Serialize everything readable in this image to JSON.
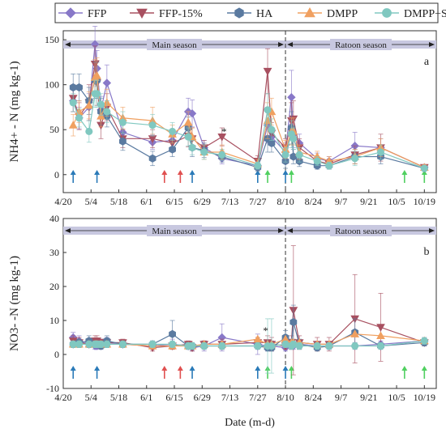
{
  "colors": {
    "FFP": "#8878c8",
    "FFP-15%": "#a85060",
    "HA": "#5a7aa0",
    "DMPP": "#f0a060",
    "DMPP+SI": "#80c8c0",
    "band": "#c8c8e0",
    "arrow_blue": "#2a7ab8",
    "arrow_red": "#e05050",
    "arrow_green": "#50d060"
  },
  "legend": {
    "placement": "top",
    "items": [
      {
        "name": "FFP",
        "marker": "diamond"
      },
      {
        "name": "FFP-15%",
        "marker": "triangle-down"
      },
      {
        "name": "HA",
        "marker": "hexagon"
      },
      {
        "name": "DMPP",
        "marker": "triangle-up"
      },
      {
        "name": "DMPP+SI",
        "marker": "circle"
      }
    ]
  },
  "x_axis": {
    "label": "Date (m-d)",
    "ticks": [
      "4/20",
      "5/4",
      "5/18",
      "6/1",
      "6/15",
      "6/29",
      "7/13",
      "7/27",
      "8/10",
      "8/24",
      "9/7",
      "9/21",
      "10/5",
      "10/19"
    ],
    "tick_days": [
      0,
      14,
      28,
      42,
      56,
      70,
      84,
      98,
      112,
      126,
      140,
      154,
      168,
      182
    ],
    "range_days": [
      0,
      188
    ],
    "season_divider_day": 112
  },
  "chart_data": [
    {
      "type": "line",
      "panel_letter": "a",
      "ylabel": "NH4+ - N (mg kg-1)",
      "ylim": [
        -20,
        160
      ],
      "yticks": [
        0,
        50,
        100,
        150
      ],
      "seasons": [
        "Main season",
        "Ratoon season"
      ],
      "star_label": "*",
      "star_day": 81,
      "star_y": 44,
      "x": [
        "4/25",
        "4/28",
        "5/3",
        "5/6",
        "5/7",
        "5/9",
        "5/12",
        "5/20",
        "6/4",
        "6/14",
        "6/22",
        "6/24",
        "6/30",
        "7/9",
        "7/27",
        "8/1",
        "8/3",
        "8/10",
        "8/13",
        "8/14",
        "8/17",
        "8/26",
        "9/1",
        "9/14",
        "9/27",
        "10/19"
      ],
      "series": [
        {
          "name": "FFP",
          "values": [
            82,
            63,
            75,
            145,
            118,
            72,
            102,
            47,
            36,
            38,
            70,
            68,
            30,
            18,
            10,
            55,
            42,
            25,
            86,
            45,
            35,
            18,
            15,
            32,
            30,
            8
          ],
          "errors": [
            12,
            12,
            15,
            20,
            20,
            15,
            20,
            12,
            8,
            10,
            15,
            15,
            8,
            6,
            5,
            20,
            10,
            10,
            30,
            15,
            10,
            6,
            5,
            15,
            10,
            3
          ]
        },
        {
          "name": "FFP-15%",
          "values": [
            85,
            65,
            80,
            123,
            102,
            55,
            75,
            40,
            40,
            35,
            43,
            40,
            30,
            42,
            15,
            115,
            46,
            30,
            60,
            62,
            30,
            15,
            12,
            22,
            30,
            8
          ],
          "errors": [
            15,
            15,
            20,
            20,
            25,
            15,
            15,
            10,
            10,
            10,
            12,
            12,
            8,
            10,
            6,
            25,
            12,
            10,
            20,
            20,
            10,
            5,
            5,
            10,
            15,
            3
          ]
        },
        {
          "name": "HA",
          "values": [
            97,
            97,
            82,
            105,
            105,
            70,
            65,
            37,
            18,
            28,
            52,
            30,
            27,
            20,
            8,
            40,
            35,
            15,
            52,
            20,
            15,
            10,
            10,
            20,
            20,
            7
          ],
          "errors": [
            15,
            15,
            15,
            20,
            20,
            15,
            12,
            10,
            8,
            8,
            12,
            10,
            8,
            6,
            4,
            15,
            10,
            8,
            18,
            8,
            6,
            4,
            4,
            8,
            8,
            3
          ]
        },
        {
          "name": "DMPP",
          "values": [
            55,
            70,
            77,
            108,
            110,
            65,
            80,
            63,
            60,
            45,
            58,
            42,
            25,
            25,
            12,
            60,
            70,
            28,
            48,
            48,
            25,
            20,
            15,
            20,
            30,
            8
          ],
          "errors": [
            12,
            12,
            15,
            20,
            20,
            12,
            15,
            12,
            15,
            10,
            12,
            10,
            8,
            8,
            5,
            20,
            15,
            10,
            15,
            15,
            8,
            6,
            5,
            8,
            10,
            3
          ]
        },
        {
          "name": "DMPP+SI",
          "values": [
            80,
            63,
            48,
            90,
            90,
            78,
            70,
            58,
            55,
            48,
            42,
            30,
            25,
            22,
            10,
            72,
            50,
            22,
            45,
            40,
            22,
            15,
            10,
            18,
            25,
            7
          ],
          "errors": [
            10,
            10,
            12,
            15,
            15,
            12,
            12,
            12,
            12,
            10,
            10,
            8,
            8,
            6,
            4,
            18,
            12,
            8,
            15,
            12,
            8,
            5,
            4,
            8,
            8,
            3
          ]
        }
      ],
      "arrows": [
        {
          "date": "4/25",
          "color": "blue"
        },
        {
          "date": "5/7",
          "color": "blue"
        },
        {
          "date": "6/10",
          "color": "red"
        },
        {
          "date": "6/18",
          "color": "red"
        },
        {
          "date": "6/24",
          "color": "blue"
        },
        {
          "date": "7/27",
          "color": "blue"
        },
        {
          "date": "8/1",
          "color": "green"
        },
        {
          "date": "8/10",
          "color": "blue"
        },
        {
          "date": "8/13",
          "color": "green"
        },
        {
          "date": "10/9",
          "color": "green"
        },
        {
          "date": "10/19",
          "color": "green"
        }
      ]
    },
    {
      "type": "line",
      "panel_letter": "b",
      "ylabel": "NO3- -N (mg kg-1)",
      "ylim": [
        -10,
        40
      ],
      "yticks": [
        -10,
        0,
        10,
        20,
        30,
        40
      ],
      "seasons": [
        "Main season",
        "Ratoon season"
      ],
      "star_label": "*",
      "star_day": 102,
      "star_y": 6,
      "x": [
        "4/25",
        "4/28",
        "5/3",
        "5/6",
        "5/7",
        "5/9",
        "5/12",
        "5/20",
        "6/4",
        "6/14",
        "6/22",
        "6/24",
        "6/30",
        "7/9",
        "7/27",
        "8/1",
        "8/3",
        "8/10",
        "8/13",
        "8/14",
        "8/17",
        "8/26",
        "9/1",
        "9/14",
        "9/27",
        "10/19"
      ],
      "series": [
        {
          "name": "FFP",
          "values": [
            5,
            4,
            3,
            2.5,
            2.5,
            3,
            3.5,
            3,
            2.5,
            3,
            2.5,
            2,
            2.5,
            5,
            3,
            2.5,
            2.5,
            2,
            3,
            2.5,
            3,
            2.5,
            2.5,
            2.5,
            3,
            4
          ],
          "errors": [
            1.5,
            1.5,
            1,
            1,
            1,
            1.5,
            1.5,
            1,
            1,
            1.5,
            1,
            1,
            1.5,
            4,
            3,
            1.5,
            1.5,
            1,
            1.5,
            1,
            1,
            1,
            1,
            1,
            1,
            1
          ]
        },
        {
          "name": "FFP-15%",
          "values": [
            4,
            3.5,
            3,
            4,
            4,
            3.5,
            3.5,
            3.5,
            2,
            2.5,
            3,
            2,
            3,
            3,
            3.5,
            3.5,
            3,
            2.5,
            3.5,
            13,
            3.5,
            3,
            3,
            10.5,
            8,
            3.5
          ],
          "errors": [
            1.5,
            1.5,
            1,
            1.5,
            1.5,
            1,
            1,
            1,
            1,
            1,
            1,
            1,
            1,
            1.5,
            1.5,
            2,
            2,
            1,
            2,
            19,
            2,
            2,
            2,
            13,
            10,
            1
          ]
        },
        {
          "name": "HA",
          "values": [
            3,
            3.5,
            4,
            3,
            3,
            2.5,
            4,
            3,
            3,
            6,
            2.5,
            2.5,
            2.5,
            2.5,
            2.5,
            2,
            2,
            5,
            3,
            9.5,
            3,
            2,
            2.5,
            6.5,
            2.5,
            3.5
          ],
          "errors": [
            1,
            1,
            1.5,
            1,
            1,
            1,
            1.5,
            1,
            1,
            4,
            1,
            1,
            1,
            1,
            1,
            1,
            1,
            2,
            1.5,
            5,
            1.5,
            1,
            1,
            4,
            1,
            1
          ]
        },
        {
          "name": "DMPP",
          "values": [
            3,
            3,
            3,
            3,
            3,
            3,
            3,
            3,
            2.5,
            2.5,
            2.5,
            2.5,
            3,
            3,
            4.5,
            3,
            3,
            4.5,
            3.5,
            3.5,
            3.5,
            3,
            3,
            6,
            5.5,
            4
          ]
        },
        {
          "name": "DMPP+SI",
          "values": [
            3,
            3,
            3,
            3,
            3,
            3,
            3,
            3,
            3,
            3,
            2.5,
            2.5,
            2.5,
            2.5,
            2.5,
            2.5,
            2.5,
            3,
            2.5,
            3,
            2.5,
            2.5,
            2.5,
            2.5,
            2.5,
            4
          ],
          "errors": [
            1,
            1,
            1,
            1,
            1,
            1,
            1,
            1,
            1,
            1,
            1,
            1,
            1,
            1,
            1,
            8,
            8,
            1,
            1,
            1,
            1,
            1,
            1,
            1,
            1,
            1
          ]
        }
      ],
      "arrows": [
        {
          "date": "4/25",
          "color": "blue"
        },
        {
          "date": "5/7",
          "color": "blue"
        },
        {
          "date": "6/10",
          "color": "red"
        },
        {
          "date": "6/18",
          "color": "red"
        },
        {
          "date": "6/24",
          "color": "blue"
        },
        {
          "date": "7/27",
          "color": "blue"
        },
        {
          "date": "8/1",
          "color": "green"
        },
        {
          "date": "8/10",
          "color": "blue"
        },
        {
          "date": "8/13",
          "color": "green"
        },
        {
          "date": "10/9",
          "color": "green"
        },
        {
          "date": "10/19",
          "color": "green"
        }
      ]
    }
  ]
}
